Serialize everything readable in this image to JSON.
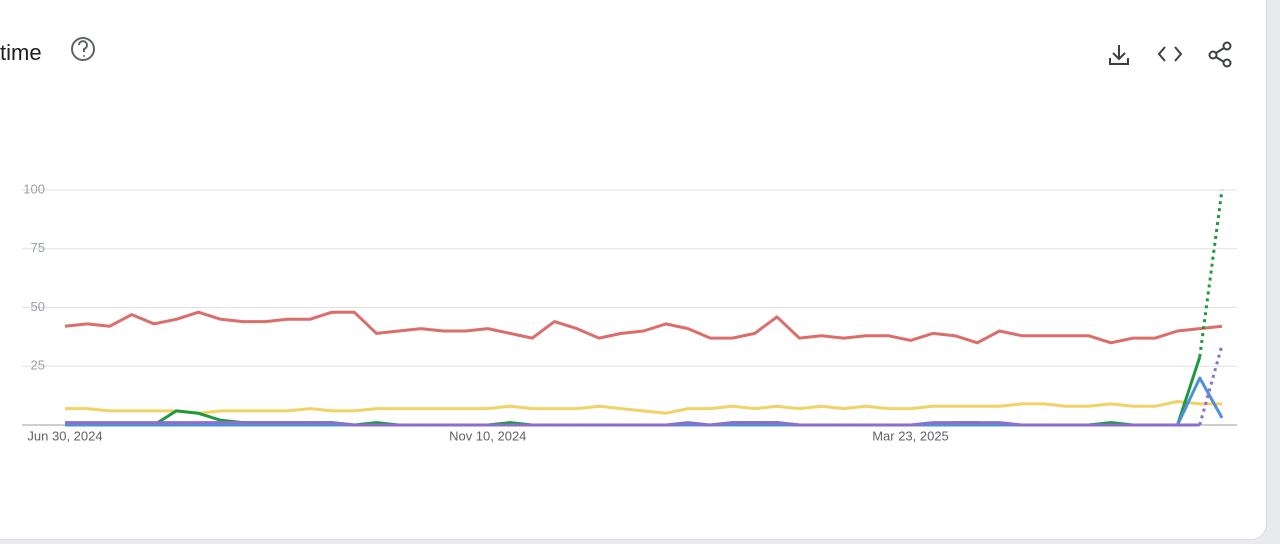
{
  "chart_data": {
    "type": "line",
    "title": "time",
    "categories": [
      "Jun 30, 2024",
      null,
      null,
      null,
      null,
      null,
      null,
      null,
      null,
      null,
      null,
      null,
      null,
      null,
      null,
      null,
      null,
      null,
      null,
      "Nov 10, 2024",
      null,
      null,
      null,
      null,
      null,
      null,
      null,
      null,
      null,
      null,
      null,
      null,
      null,
      null,
      null,
      null,
      null,
      null,
      "Mar 23, 2025",
      null,
      null,
      null,
      null,
      null,
      null,
      null,
      null,
      null,
      null,
      null,
      null,
      null,
      null
    ],
    "series": [
      {
        "color": "#db6e6a",
        "values": [
          42,
          43,
          42,
          47,
          43,
          45,
          48,
          45,
          44,
          44,
          45,
          45,
          48,
          48,
          39,
          40,
          41,
          40,
          40,
          41,
          39,
          37,
          44,
          41,
          37,
          39,
          40,
          43,
          41,
          37,
          37,
          39,
          46,
          37,
          38,
          37,
          38,
          38,
          36,
          39,
          38,
          35,
          40,
          38,
          38,
          38,
          38,
          35,
          37,
          37,
          40,
          41,
          42
        ]
      },
      {
        "color": "#f2d264",
        "values": [
          7,
          7,
          6,
          6,
          6,
          6,
          5,
          6,
          6,
          6,
          6,
          7,
          6,
          6,
          7,
          7,
          7,
          7,
          7,
          7,
          8,
          7,
          7,
          7,
          8,
          7,
          6,
          5,
          7,
          7,
          8,
          7,
          8,
          7,
          8,
          7,
          8,
          7,
          7,
          8,
          8,
          8,
          8,
          9,
          9,
          8,
          8,
          9,
          8,
          8,
          10,
          9,
          9
        ]
      },
      {
        "color": "#1e9a3e",
        "dashed_last_segment": true,
        "values": [
          0,
          0,
          0,
          0,
          0,
          6,
          5,
          2,
          1,
          1,
          1,
          1,
          1,
          0,
          1,
          0,
          0,
          0,
          0,
          0,
          1,
          0,
          0,
          0,
          0,
          0,
          0,
          0,
          0,
          0,
          1,
          1,
          1,
          0,
          0,
          0,
          0,
          0,
          0,
          0,
          1,
          1,
          0,
          0,
          0,
          0,
          0,
          1,
          0,
          0,
          0,
          29,
          100
        ]
      },
      {
        "color": "#4f8fdb",
        "values": [
          0,
          0,
          0,
          0,
          0,
          0,
          0,
          0,
          0,
          0,
          0,
          0,
          0,
          0,
          0,
          0,
          0,
          0,
          0,
          0,
          0,
          0,
          0,
          0,
          0,
          0,
          0,
          0,
          0,
          0,
          0,
          0,
          0,
          0,
          0,
          0,
          0,
          0,
          0,
          0,
          0,
          0,
          0,
          0,
          0,
          0,
          0,
          0,
          0,
          0,
          0,
          20,
          3
        ]
      },
      {
        "color": "#8a6fcf",
        "dashed_last_segment": true,
        "values": [
          1,
          1,
          1,
          1,
          1,
          1,
          1,
          1,
          1,
          1,
          1,
          1,
          1,
          0,
          0,
          0,
          0,
          0,
          0,
          0,
          0,
          0,
          0,
          0,
          0,
          0,
          0,
          0,
          1,
          0,
          1,
          1,
          1,
          0,
          0,
          0,
          0,
          0,
          0,
          1,
          1,
          1,
          1,
          0,
          0,
          0,
          0,
          0,
          0,
          0,
          0,
          0,
          34
        ]
      }
    ],
    "ylim": [
      0,
      100
    ],
    "yticks": [
      25,
      50,
      75,
      100
    ],
    "grid": true
  }
}
